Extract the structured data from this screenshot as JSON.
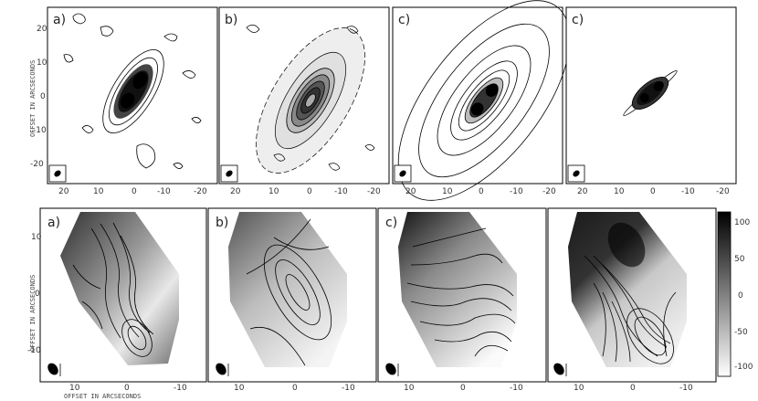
{
  "top_row": {
    "panels": [
      {
        "label": "a)"
      },
      {
        "label": "b)"
      },
      {
        "label": "c)"
      },
      {
        "label": "c)"
      }
    ],
    "y_axis_label": "OFFSET IN ARCSECONDS",
    "y_ticks": [
      "20",
      "10",
      "0",
      "-10",
      "-20"
    ],
    "x_ticks": [
      "20",
      "10",
      "0",
      "-10",
      "-20"
    ]
  },
  "bottom_row": {
    "panels": [
      {
        "label": "a)"
      },
      {
        "label": "b)"
      },
      {
        "label": "c)"
      },
      {
        "label": ""
      }
    ],
    "y_axis_label": "OFFSET IN ARCSECONDS",
    "x_axis_label": "OFFSET IN ARCSECONDS",
    "y_ticks": [
      "10",
      "0",
      "-10"
    ],
    "x_ticks": [
      "10",
      "0",
      "-10"
    ]
  },
  "colorbar": {
    "ticks": [
      "100",
      "50",
      "0",
      "-50",
      "-100"
    ]
  }
}
